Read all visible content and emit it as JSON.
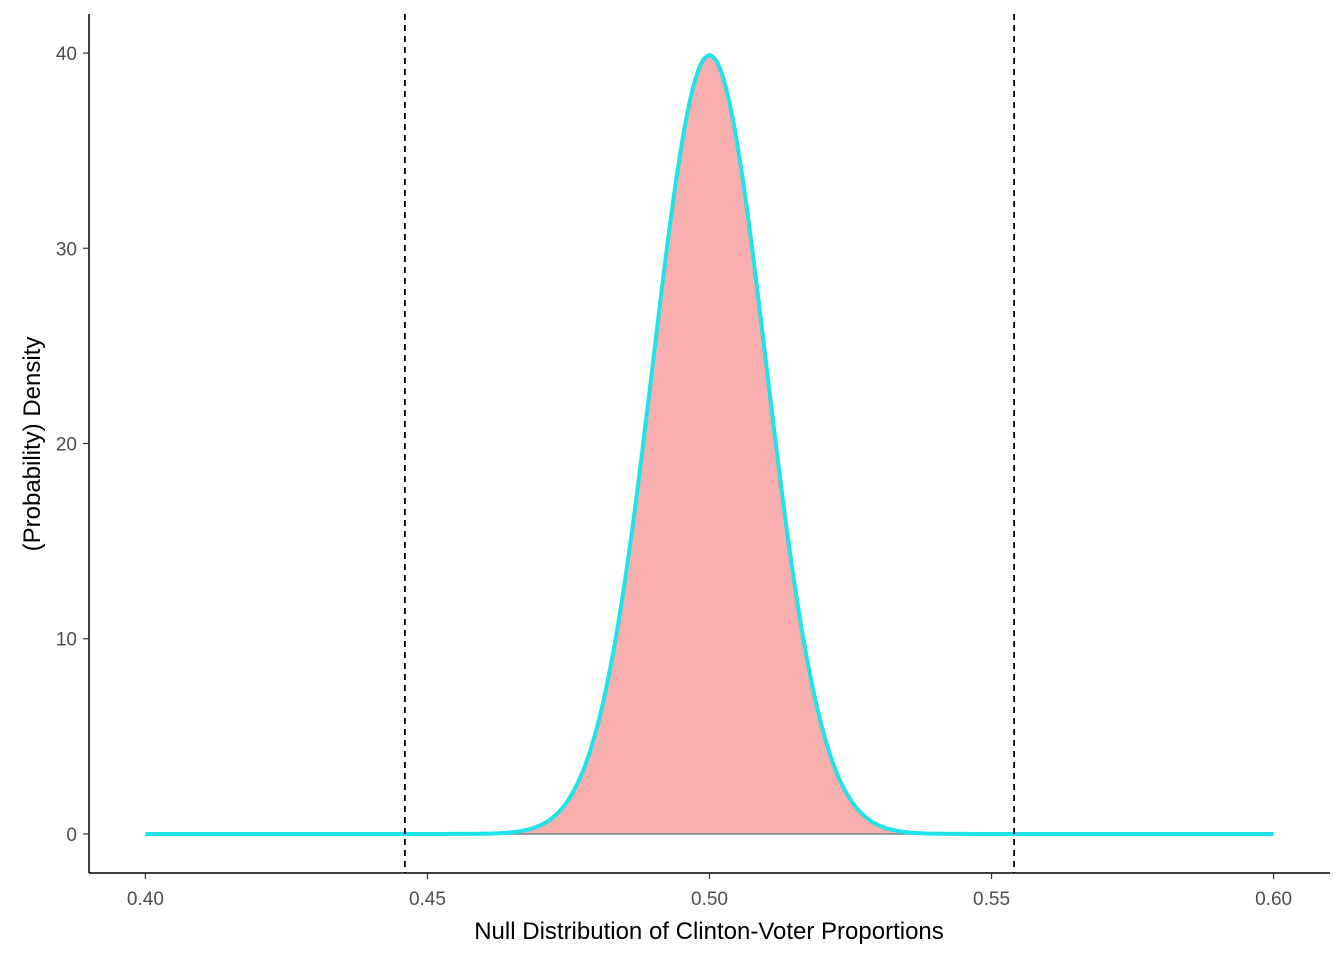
{
  "chart_data": {
    "type": "area",
    "title": "",
    "xlabel": "Null Distribution of Clinton-Voter Proportions",
    "ylabel": "(Probability) Density",
    "xlim": [
      0.39,
      0.61
    ],
    "ylim": [
      -2,
      42
    ],
    "x_ticks": [
      0.4,
      0.45,
      0.5,
      0.55,
      0.6
    ],
    "x_tick_labels": [
      "0.40",
      "0.45",
      "0.50",
      "0.55",
      "0.60"
    ],
    "y_ticks": [
      0,
      10,
      20,
      30,
      40
    ],
    "y_tick_labels": [
      "0",
      "10",
      "20",
      "30",
      "40"
    ],
    "grid": false,
    "legend": "none",
    "series": [
      {
        "distribution": "normal",
        "mean": 0.5,
        "sd": 0.01,
        "x_range": [
          0.4,
          0.6
        ],
        "fill_range": [
          0.446,
          0.554
        ],
        "peak_density": 39.9
      }
    ],
    "vlines": [
      0.446,
      0.554
    ],
    "colors": {
      "curve": "#1ee3e8",
      "fill": "#f8aeac",
      "fill_edge": "#6e8a8a",
      "vline": "#000000",
      "axis": "#000000"
    }
  }
}
